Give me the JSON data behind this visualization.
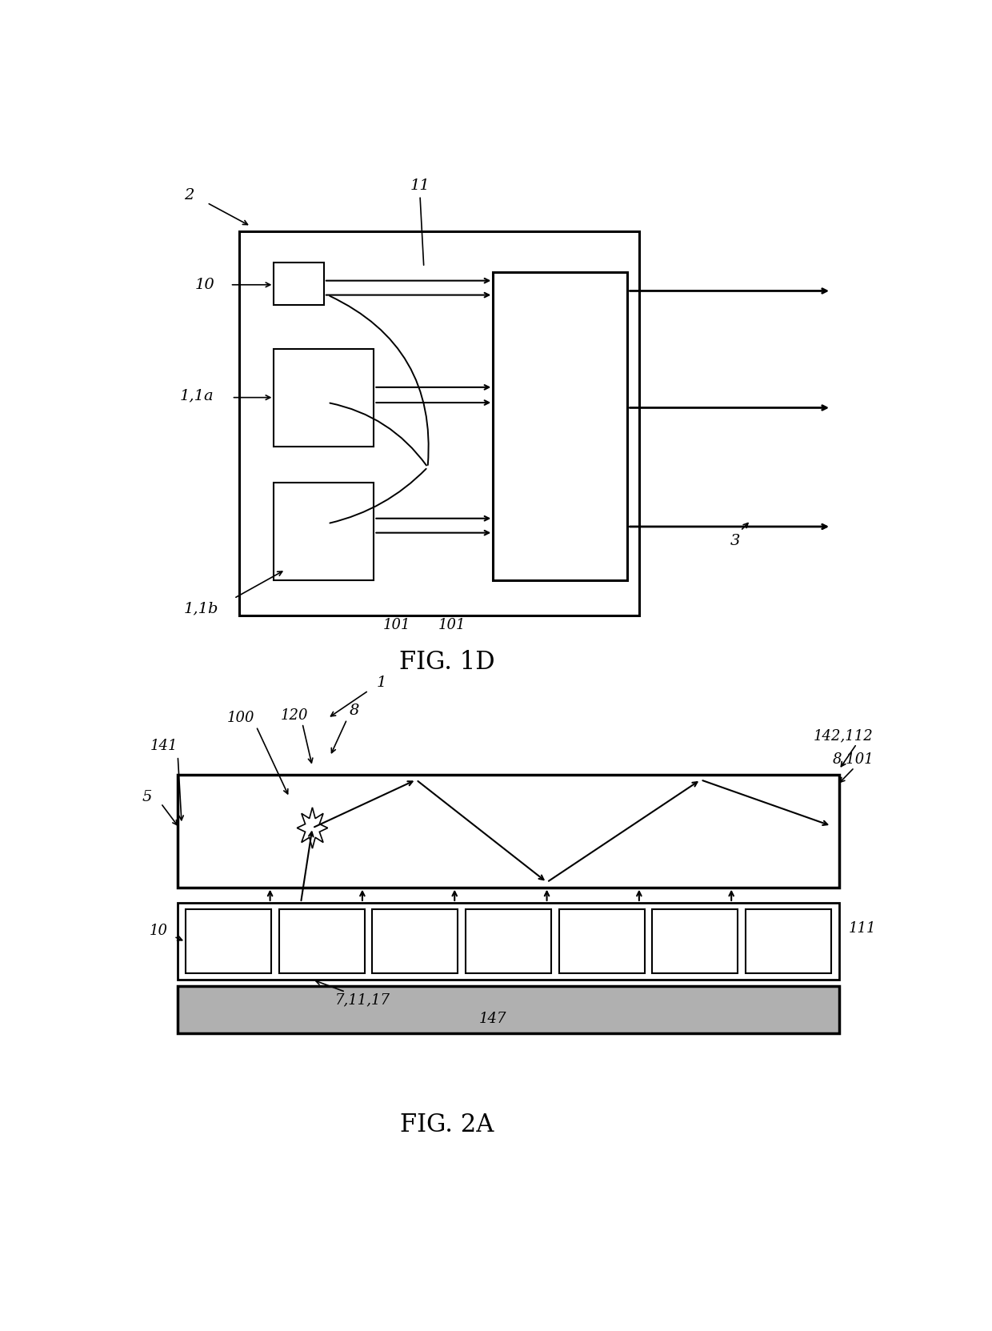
{
  "fig_width": 12.4,
  "fig_height": 16.63,
  "bg_color": "#ffffff",
  "line_color": "#000000",
  "fig1d_title": "FIG. 1D",
  "fig2a_title": "FIG. 2A"
}
